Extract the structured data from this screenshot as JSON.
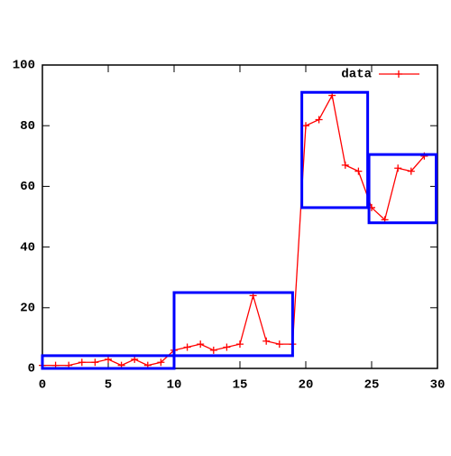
{
  "chart_data": {
    "type": "line",
    "x": [
      0,
      1,
      2,
      3,
      4,
      5,
      6,
      7,
      8,
      9,
      10,
      11,
      12,
      13,
      14,
      15,
      16,
      17,
      18,
      19,
      20,
      21,
      22,
      23,
      24,
      25,
      26,
      27,
      28,
      29
    ],
    "series": [
      {
        "name": "data",
        "color": "#ff0000",
        "values": [
          1,
          1,
          1,
          2,
          2,
          3,
          1,
          3,
          1,
          2,
          6,
          7,
          8,
          6,
          7,
          8,
          24,
          9,
          8,
          8,
          80,
          82,
          90,
          67,
          65,
          53,
          49,
          66,
          65,
          70
        ]
      }
    ],
    "boxes": [
      {
        "x": [
          0,
          10
        ],
        "y": [
          0,
          4.2
        ],
        "color": "#0000ff"
      },
      {
        "x": [
          10,
          19
        ],
        "y": [
          4.2,
          25
        ],
        "color": "#0000ff"
      },
      {
        "x": [
          19.7,
          24.7
        ],
        "y": [
          53,
          91
        ],
        "color": "#0000ff"
      },
      {
        "x": [
          24.8,
          29.9
        ],
        "y": [
          48,
          70.5
        ],
        "color": "#0000ff"
      }
    ],
    "xlim": [
      0,
      30
    ],
    "xticks": [
      0,
      5,
      10,
      15,
      20,
      25,
      30
    ],
    "ylim": [
      0,
      100
    ],
    "yticks": [
      0,
      20,
      40,
      60,
      80,
      100
    ],
    "grid": false,
    "legend": "top-right"
  }
}
